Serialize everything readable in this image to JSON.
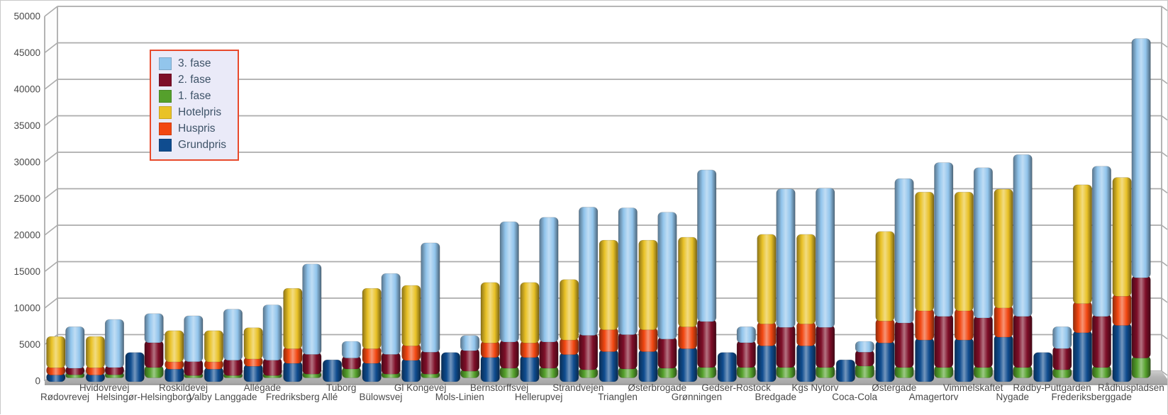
{
  "legend": {
    "items": [
      {
        "label": "3. fase",
        "color": "#92C5EC"
      },
      {
        "label": "2. fase",
        "color": "#7E0E28"
      },
      {
        "label": "1. fase",
        "color": "#55A02C"
      },
      {
        "label": "Hotelpris",
        "color": "#E9C227"
      },
      {
        "label": "Huspris",
        "color": "#F24711"
      },
      {
        "label": "Grundpris",
        "color": "#0F4C8F"
      }
    ]
  },
  "chart_data": {
    "type": "bar",
    "variant": "3d-paired-stacked-columns",
    "title": "",
    "xlabel": "",
    "ylabel": "",
    "ylim": [
      0,
      50000
    ],
    "y_tick_step": 5000,
    "y_ticks": [
      0,
      5000,
      10000,
      15000,
      20000,
      25000,
      30000,
      35000,
      40000,
      45000,
      50000
    ],
    "grid": true,
    "legend_position": "top-left",
    "stacks": [
      {
        "id": "price",
        "series": [
          "Grundpris",
          "Huspris",
          "Hotelpris"
        ]
      },
      {
        "id": "fase",
        "series": [
          "1. fase",
          "2. fase",
          "3. fase"
        ]
      }
    ],
    "colors": {
      "Grundpris": "#0F4C8F",
      "Huspris": "#F24711",
      "Hotelpris": "#E9C227",
      "1. fase": "#55A02C",
      "2. fase": "#7E0E28",
      "3. fase": "#92C5EC"
    },
    "categories": [
      "Rødovrevej",
      "Hvidovrevej",
      "Helsingør-Helsingborg",
      "Roskildevej",
      "Valby Langgade",
      "Allégade",
      "Fredriksberg Allé",
      "Tuborg",
      "Bülowsvej",
      "Gl Kongevej",
      "Mols-Linien",
      "Bernstorffsvej",
      "Hellerupvej",
      "Strandvejen",
      "Trianglen",
      "Østerbrogade",
      "Grønningen",
      "Gedser-Rostock",
      "Bredgade",
      "Kgs Nytorv",
      "Coca-Cola",
      "Østergade",
      "Amagertorv",
      "Vimmelskaftet",
      "Nygade",
      "Rødby-Puttgarden",
      "Frederiksberggade",
      "Rådhuspladsen"
    ],
    "rows": [
      {
        "category": "Rødovrevej",
        "Grundpris": 1200,
        "Huspris": 1000,
        "Hotelpris": 4000,
        "1. fase": 700,
        "2. fase": 900,
        "3. fase": 5400
      },
      {
        "category": "Hvidovrevej",
        "Grundpris": 1200,
        "Huspris": 1000,
        "Hotelpris": 4000,
        "1. fase": 700,
        "2. fase": 1000,
        "3. fase": 6300
      },
      {
        "category": "Helsingør-Helsingborg",
        "Grundpris": 4000,
        "1. fase": 1700,
        "2. fase": 3400,
        "3. fase": 3700
      },
      {
        "category": "Roskildevej",
        "Grundpris": 2000,
        "Huspris": 1000,
        "Hotelpris": 4000,
        "1. fase": 600,
        "2. fase": 1900,
        "3. fase": 6000
      },
      {
        "category": "Valby Langgade",
        "Grundpris": 2000,
        "Huspris": 1000,
        "Hotelpris": 4000,
        "1. fase": 600,
        "2. fase": 2100,
        "3. fase": 6700
      },
      {
        "category": "Allégade",
        "Grundpris": 2400,
        "Huspris": 1000,
        "Hotelpris": 4000,
        "1. fase": 600,
        "2. fase": 2100,
        "3. fase": 7300
      },
      {
        "category": "Fredriksberg Allé",
        "Grundpris": 2800,
        "Huspris": 2000,
        "Hotelpris": 8000,
        "1. fase": 800,
        "2. fase": 2700,
        "3. fase": 12100
      },
      {
        "category": "Tuborg",
        "Grundpris": 3000,
        "1. fase": 1500,
        "2. fase": 1500,
        "3. fase": 2000
      },
      {
        "category": "Bülowsvej",
        "Grundpris": 2800,
        "Huspris": 2000,
        "Hotelpris": 8000,
        "1. fase": 800,
        "2. fase": 2700,
        "3. fase": 10800
      },
      {
        "category": "Gl Kongevej",
        "Grundpris": 3200,
        "Huspris": 2000,
        "Hotelpris": 8000,
        "1. fase": 800,
        "2. fase": 3000,
        "3. fase": 14700
      },
      {
        "category": "Mols-Linien",
        "Grundpris": 4000,
        "1. fase": 1200,
        "2. fase": 2800,
        "3. fase": 1800
      },
      {
        "category": "Bernstorffsvej",
        "Grundpris": 3600,
        "Huspris": 2000,
        "Hotelpris": 8000,
        "1. fase": 1600,
        "2. fase": 3600,
        "3. fase": 16200
      },
      {
        "category": "Hellerupvej",
        "Grundpris": 3600,
        "Huspris": 2000,
        "Hotelpris": 8000,
        "1. fase": 1600,
        "2. fase": 3600,
        "3. fase": 16800
      },
      {
        "category": "Strandvejen",
        "Grundpris": 4000,
        "Huspris": 2000,
        "Hotelpris": 8000,
        "1. fase": 1400,
        "2. fase": 4700,
        "3. fase": 17300
      },
      {
        "category": "Trianglen",
        "Grundpris": 4400,
        "Huspris": 3000,
        "Hotelpris": 12000,
        "1. fase": 1500,
        "2. fase": 4700,
        "3. fase": 17100
      },
      {
        "category": "Østerbrogade",
        "Grundpris": 4400,
        "Huspris": 3000,
        "Hotelpris": 12000,
        "1. fase": 1600,
        "2. fase": 4000,
        "3. fase": 17100
      },
      {
        "category": "Grønningen",
        "Grundpris": 4800,
        "Huspris": 3000,
        "Hotelpris": 12000,
        "1. fase": 1700,
        "2. fase": 6300,
        "3. fase": 20500
      },
      {
        "category": "Gedser-Rostock",
        "Grundpris": 4000,
        "1. fase": 1700,
        "2. fase": 3400,
        "3. fase": 1900
      },
      {
        "category": "Bredgade",
        "Grundpris": 5200,
        "Huspris": 3000,
        "Hotelpris": 12000,
        "1. fase": 1700,
        "2. fase": 5500,
        "3. fase": 18700
      },
      {
        "category": "Kgs Nytorv",
        "Grundpris": 5200,
        "Huspris": 3000,
        "Hotelpris": 12000,
        "1. fase": 1700,
        "2. fase": 5500,
        "3. fase": 18800
      },
      {
        "category": "Coca-Cola",
        "Grundpris": 3000,
        "1. fase": 1900,
        "2. fase": 1900,
        "3. fase": 1200
      },
      {
        "category": "Østergade",
        "Grundpris": 5600,
        "Huspris": 3000,
        "Hotelpris": 12000,
        "1. fase": 1700,
        "2. fase": 6100,
        "3. fase": 19500
      },
      {
        "category": "Amagertorv",
        "Grundpris": 6000,
        "Huspris": 4000,
        "Hotelpris": 16000,
        "1. fase": 1700,
        "2. fase": 7000,
        "3. fase": 20800
      },
      {
        "category": "Vimmelskaftet",
        "Grundpris": 6000,
        "Huspris": 4000,
        "Hotelpris": 16000,
        "1. fase": 1700,
        "2. fase": 6800,
        "3. fase": 20300
      },
      {
        "category": "Nygade",
        "Grundpris": 6400,
        "Huspris": 4000,
        "Hotelpris": 16000,
        "1. fase": 1700,
        "2. fase": 7000,
        "3. fase": 21900
      },
      {
        "category": "Rødby-Puttgarden",
        "Grundpris": 4000,
        "1. fase": 1400,
        "2. fase": 2900,
        "3. fase": 2700
      },
      {
        "category": "Frederiksberggade",
        "Grundpris": 7000,
        "Huspris": 4000,
        "Hotelpris": 16000,
        "1. fase": 1700,
        "2. fase": 7000,
        "3. fase": 20300
      },
      {
        "category": "Rådhuspladsen",
        "Grundpris": 8000,
        "Huspris": 4000,
        "Hotelpris": 16000,
        "1. fase": 3000,
        "2. fase": 11000,
        "3. fase": 32500
      }
    ]
  }
}
